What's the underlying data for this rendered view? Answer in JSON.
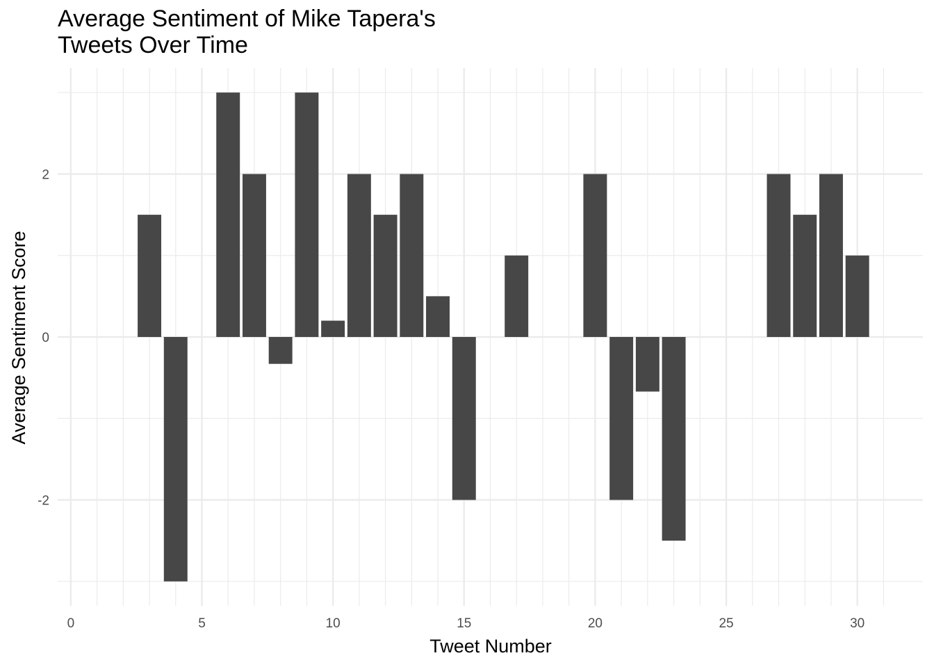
{
  "chart_data": {
    "type": "bar",
    "title_lines": [
      "Average Sentiment of Mike Tapera's",
      "Tweets Over Time"
    ],
    "xlabel": "Tweet Number",
    "ylabel": "Average Sentiment Score",
    "x": [
      3,
      4,
      6,
      7,
      8,
      9,
      10,
      11,
      12,
      13,
      14,
      15,
      17,
      20,
      21,
      22,
      23,
      27,
      28,
      29,
      30
    ],
    "values": [
      1.5,
      -3,
      3,
      2,
      -0.33,
      3,
      0.2,
      2,
      1.5,
      2,
      0.5,
      -2,
      1,
      2,
      -2,
      -0.67,
      -2.5,
      2,
      1.5,
      2,
      1
    ],
    "xlim": [
      -0.5,
      32.5
    ],
    "ylim": [
      -3.3,
      3.3
    ],
    "xticks": [
      0,
      5,
      10,
      15,
      20,
      25,
      30
    ],
    "xtick_labels": [
      "0",
      "5",
      "10",
      "15",
      "20",
      "25",
      "30"
    ],
    "yticks": [
      -2,
      0,
      2
    ],
    "ytick_labels": [
      "-2",
      "0",
      "2"
    ],
    "grid": true,
    "bar_color": "#474747",
    "grid_color": "#ebebeb"
  }
}
